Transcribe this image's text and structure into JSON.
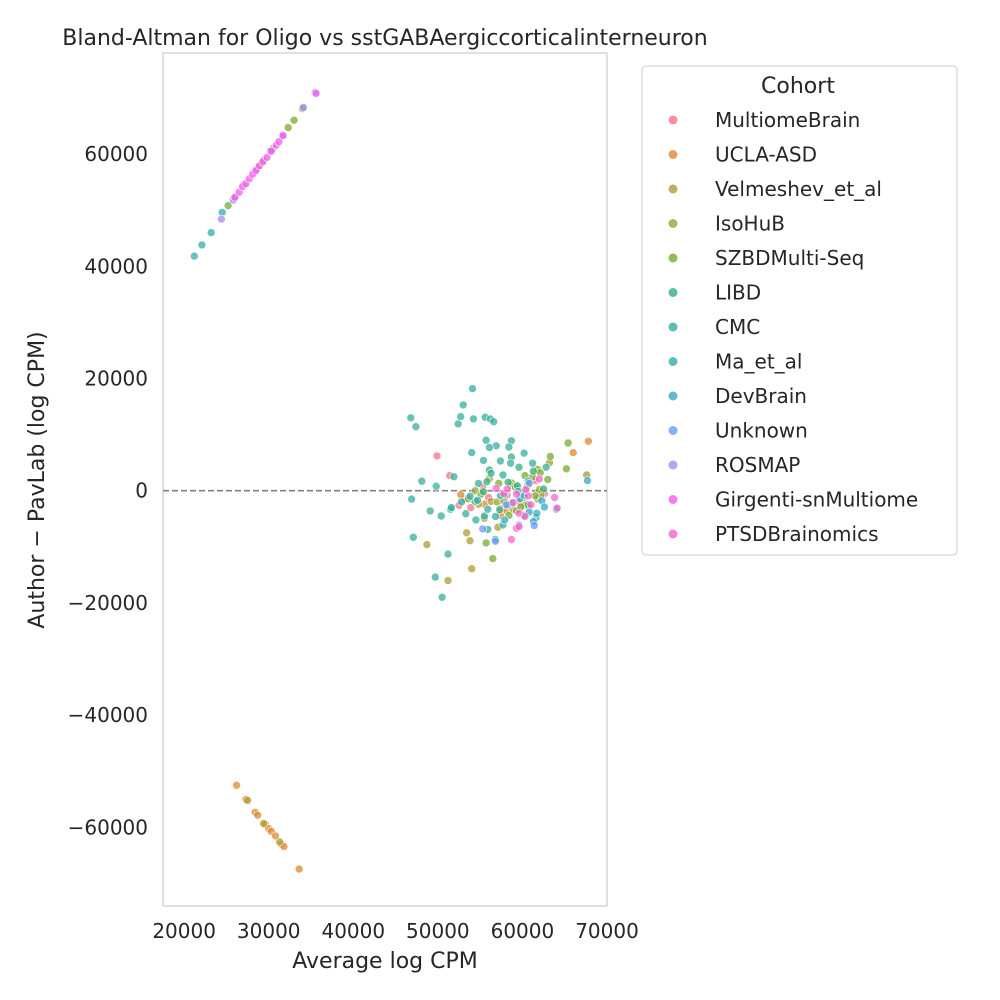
{
  "chart_data": {
    "type": "scatter",
    "title": "Bland-Altman for Oligo vs sstGABAergiccorticalinterneuron",
    "xlabel": "Average log CPM",
    "ylabel": "Author − PavLab (log CPM)",
    "xlim": [
      17500,
      70000
    ],
    "ylim": [
      -74000,
      78000
    ],
    "xticks": [
      20000,
      30000,
      40000,
      50000,
      60000,
      70000
    ],
    "xtick_labels": [
      "20000",
      "30000",
      "40000",
      "50000",
      "60000",
      "70000"
    ],
    "yticks": [
      -60000,
      -40000,
      -20000,
      0,
      20000,
      40000,
      60000
    ],
    "ytick_labels": [
      "−60000",
      "−40000",
      "−20000",
      "0",
      "20000",
      "40000",
      "60000"
    ],
    "reference_line": {
      "y": 0,
      "style": "dashed",
      "color": "#808080"
    },
    "grid": false,
    "legend": {
      "title": "Cohort",
      "placement": "outside-right-top",
      "entries": [
        {
          "name": "MultiomeBrain",
          "color": "#f77189"
        },
        {
          "name": "UCLA-ASD",
          "color": "#dc8932"
        },
        {
          "name": "Velmeshev_et_al",
          "color": "#ae9d31"
        },
        {
          "name": "IsoHuB",
          "color": "#97a431"
        },
        {
          "name": "SZBDMulti-Seq",
          "color": "#77ab31"
        },
        {
          "name": "LIBD",
          "color": "#33b07a"
        },
        {
          "name": "CMC",
          "color": "#35ad9c"
        },
        {
          "name": "Ma_et_al",
          "color": "#36ada4"
        },
        {
          "name": "DevBrain",
          "color": "#38a9c5"
        },
        {
          "name": "Unknown",
          "color": "#6e9bf4"
        },
        {
          "name": "ROSMAP",
          "color": "#a48cf4"
        },
        {
          "name": "Girgenti-snMultiome",
          "color": "#f45deb"
        },
        {
          "name": "PTSDBrainomics",
          "color": "#f565cc"
        }
      ]
    },
    "series": [
      {
        "name": "MultiomeBrain",
        "points": [
          [
            49900,
            6200
          ],
          [
            51400,
            2700
          ],
          [
            52500,
            -2600
          ],
          [
            53200,
            -1500
          ],
          [
            56000,
            -1200
          ],
          [
            58200,
            -800
          ],
          [
            59700,
            -2000
          ],
          [
            61500,
            1800
          ],
          [
            55300,
            700
          ],
          [
            57500,
            -3200
          ],
          [
            62600,
            -500
          ],
          [
            53900,
            -3000
          ]
        ]
      },
      {
        "name": "UCLA-ASD",
        "points": [
          [
            26200,
            -52500
          ],
          [
            27300,
            -55000
          ],
          [
            28400,
            -57300
          ],
          [
            28700,
            -57800
          ],
          [
            29600,
            -59400
          ],
          [
            30000,
            -60200
          ],
          [
            30300,
            -60700
          ],
          [
            30800,
            -61500
          ],
          [
            31500,
            -63000
          ],
          [
            31800,
            -63400
          ],
          [
            33600,
            -67400
          ],
          [
            67800,
            8800
          ],
          [
            66000,
            6800
          ],
          [
            52700,
            -700
          ],
          [
            55500,
            -2400
          ],
          [
            57400,
            -4400
          ],
          [
            60300,
            -2600
          ],
          [
            58100,
            -3500
          ]
        ]
      },
      {
        "name": "Velmeshev_et_al",
        "points": [
          [
            27500,
            -55200
          ],
          [
            29400,
            -59300
          ],
          [
            31300,
            -62600
          ],
          [
            48700,
            -9600
          ],
          [
            51200,
            -16000
          ],
          [
            53400,
            -7500
          ],
          [
            54000,
            -13900
          ],
          [
            53800,
            -8900
          ],
          [
            55500,
            -4900
          ],
          [
            57100,
            -6500
          ],
          [
            58900,
            -3300
          ],
          [
            61800,
            -1500
          ],
          [
            62200,
            -700
          ],
          [
            54800,
            -2400
          ],
          [
            56300,
            -1900
          ]
        ]
      },
      {
        "name": "IsoHuB",
        "points": [
          [
            67600,
            2800
          ],
          [
            63200,
            5000
          ],
          [
            61800,
            3800
          ],
          [
            58700,
            1400
          ],
          [
            60200,
            -1200
          ],
          [
            62000,
            200
          ],
          [
            59300,
            -3600
          ],
          [
            57000,
            -2000
          ],
          [
            56100,
            2200
          ],
          [
            54400,
            0
          ],
          [
            61200,
            2500
          ],
          [
            60600,
            800
          ]
        ]
      },
      {
        "name": "SZBDMulti-Seq",
        "points": [
          [
            25200,
            50800
          ],
          [
            26000,
            52200
          ],
          [
            28700,
            57500
          ],
          [
            29400,
            58900
          ],
          [
            30500,
            61000
          ],
          [
            32300,
            64700
          ],
          [
            33000,
            66000
          ],
          [
            34000,
            68100
          ],
          [
            65400,
            8500
          ],
          [
            65200,
            3900
          ],
          [
            63300,
            6100
          ],
          [
            62100,
            3200
          ],
          [
            55700,
            -9300
          ],
          [
            56500,
            -12100
          ],
          [
            53600,
            -1400
          ],
          [
            58400,
            -4400
          ],
          [
            59800,
            -2900
          ],
          [
            61500,
            -900
          ],
          [
            57200,
            1300
          ],
          [
            55100,
            -600
          ],
          [
            60300,
            2700
          ],
          [
            58600,
            900
          ],
          [
            63000,
            2000
          ],
          [
            57800,
            -1800
          ],
          [
            59200,
            600
          ]
        ]
      },
      {
        "name": "LIBD",
        "points": [
          [
            58700,
            6000
          ],
          [
            59600,
            4200
          ],
          [
            62500,
            300
          ],
          [
            56100,
            3700
          ],
          [
            55400,
            -200
          ],
          [
            57300,
            -3400
          ],
          [
            60200,
            -4400
          ],
          [
            61300,
            3500
          ],
          [
            58300,
            1500
          ],
          [
            54400,
            -1900
          ],
          [
            55800,
            1600
          ],
          [
            57900,
            -700
          ],
          [
            59400,
            900
          ],
          [
            60700,
            -2500
          ]
        ]
      },
      {
        "name": "CMC",
        "points": [
          [
            46800,
            13000
          ],
          [
            47400,
            11400
          ],
          [
            47100,
            -8300
          ],
          [
            49700,
            -15400
          ],
          [
            50500,
            -19000
          ],
          [
            51200,
            -11300
          ],
          [
            49800,
            800
          ],
          [
            51500,
            -3300
          ],
          [
            52400,
            11900
          ],
          [
            53000,
            15300
          ],
          [
            52700,
            13200
          ],
          [
            54100,
            18200
          ],
          [
            54200,
            12800
          ],
          [
            55600,
            13100
          ],
          [
            56200,
            12800
          ],
          [
            56600,
            12300
          ],
          [
            56900,
            8000
          ],
          [
            55700,
            9000
          ],
          [
            56100,
            7700
          ],
          [
            58700,
            8900
          ],
          [
            58600,
            4900
          ],
          [
            58400,
            7800
          ],
          [
            57400,
            5300
          ],
          [
            55400,
            5400
          ],
          [
            56300,
            3100
          ],
          [
            57700,
            2800
          ],
          [
            54800,
            1300
          ],
          [
            53800,
            -1000
          ],
          [
            52800,
            -2000
          ],
          [
            53300,
            -4100
          ],
          [
            54500,
            -5200
          ],
          [
            55500,
            -4500
          ],
          [
            55900,
            -6900
          ],
          [
            56800,
            -8700
          ],
          [
            57700,
            -6100
          ],
          [
            48100,
            1700
          ],
          [
            49100,
            -3600
          ],
          [
            50400,
            -4500
          ],
          [
            51600,
            -3000
          ],
          [
            60200,
            6700
          ],
          [
            61200,
            4900
          ],
          [
            62800,
            4200
          ],
          [
            54000,
            6800
          ],
          [
            51900,
            2500
          ],
          [
            46900,
            -1500
          ]
        ]
      },
      {
        "name": "Ma_et_al",
        "points": [
          [
            21200,
            41800
          ],
          [
            22100,
            43800
          ],
          [
            23200,
            46000
          ],
          [
            24500,
            49600
          ],
          [
            56800,
            -4600
          ],
          [
            54700,
            -1700
          ],
          [
            55900,
            -3300
          ],
          [
            58300,
            -2600
          ],
          [
            59500,
            -100
          ],
          [
            60700,
            1700
          ],
          [
            57400,
            -900
          ],
          [
            61600,
            -4800
          ]
        ]
      },
      {
        "name": "DevBrain",
        "points": [
          [
            67700,
            1800
          ],
          [
            64000,
            -3300
          ],
          [
            62300,
            -1800
          ],
          [
            61700,
            -4000
          ],
          [
            61300,
            -5500
          ],
          [
            60800,
            -3800
          ],
          [
            59700,
            -1400
          ],
          [
            58700,
            -2200
          ],
          [
            57900,
            -5200
          ],
          [
            62600,
            -2900
          ],
          [
            60200,
            -800
          ]
        ]
      },
      {
        "name": "Unknown",
        "points": [
          [
            61400,
            -6200
          ],
          [
            56800,
            -9000
          ],
          [
            59600,
            -6100
          ],
          [
            58100,
            -2500
          ],
          [
            55300,
            -6800
          ],
          [
            60800,
            1300
          ]
        ]
      },
      {
        "name": "ROSMAP",
        "points": [
          [
            24400,
            48400
          ],
          [
            25800,
            51800
          ],
          [
            27100,
            54500
          ],
          [
            28400,
            56800
          ],
          [
            30200,
            60600
          ],
          [
            31600,
            63200
          ],
          [
            35500,
            71000
          ],
          [
            34100,
            68300
          ]
        ]
      },
      {
        "name": "Girgenti-snMultiome",
        "points": [
          [
            26000,
            52300
          ],
          [
            26500,
            53200
          ],
          [
            26900,
            54200
          ],
          [
            27300,
            54700
          ],
          [
            27700,
            55600
          ],
          [
            28100,
            56400
          ],
          [
            28500,
            57100
          ],
          [
            28900,
            57900
          ],
          [
            29300,
            58600
          ],
          [
            29800,
            59400
          ],
          [
            30300,
            60500
          ],
          [
            30900,
            61600
          ],
          [
            31200,
            62200
          ],
          [
            31700,
            63300
          ],
          [
            35600,
            70800
          ]
        ]
      },
      {
        "name": "PTSDBrainomics",
        "points": [
          [
            63800,
            -1200
          ],
          [
            64100,
            -3100
          ],
          [
            62000,
            2100
          ],
          [
            60700,
            -900
          ],
          [
            59300,
            -600
          ],
          [
            58900,
            -2100
          ],
          [
            59600,
            -4000
          ],
          [
            60300,
            -4600
          ],
          [
            58700,
            -8700
          ],
          [
            59300,
            -6700
          ],
          [
            59600,
            -6400
          ],
          [
            57800,
            -500
          ],
          [
            56900,
            400
          ],
          [
            58200,
            300
          ],
          [
            61000,
            -2500
          ],
          [
            60400,
            200
          ]
        ]
      }
    ]
  }
}
